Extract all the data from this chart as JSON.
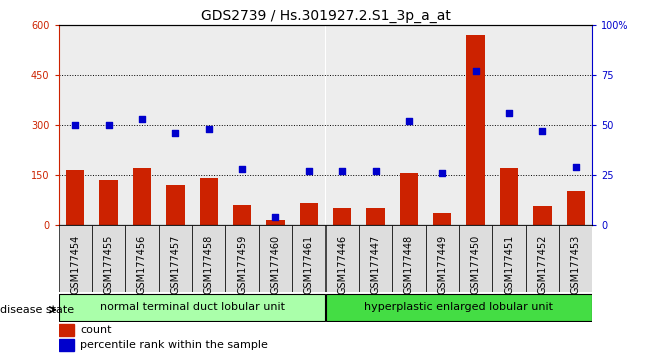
{
  "title": "GDS2739 / Hs.301927.2.S1_3p_a_at",
  "samples": [
    "GSM177454",
    "GSM177455",
    "GSM177456",
    "GSM177457",
    "GSM177458",
    "GSM177459",
    "GSM177460",
    "GSM177461",
    "GSM177446",
    "GSM177447",
    "GSM177448",
    "GSM177449",
    "GSM177450",
    "GSM177451",
    "GSM177452",
    "GSM177453"
  ],
  "counts": [
    165,
    135,
    170,
    120,
    140,
    60,
    15,
    65,
    50,
    50,
    155,
    35,
    570,
    170,
    55,
    100
  ],
  "percentiles": [
    50,
    50,
    53,
    46,
    48,
    28,
    4,
    27,
    27,
    27,
    52,
    26,
    77,
    56,
    47,
    29
  ],
  "group1_label": "normal terminal duct lobular unit",
  "group2_label": "hyperplastic enlarged lobular unit",
  "group1_count": 8,
  "group2_count": 8,
  "bar_color": "#cc2200",
  "dot_color": "#0000cc",
  "left_axis_color": "#cc2200",
  "right_axis_color": "#0000cc",
  "ylim_left": [
    0,
    600
  ],
  "ylim_right": [
    0,
    100
  ],
  "yticks_left": [
    0,
    150,
    300,
    450,
    600
  ],
  "yticks_right": [
    0,
    25,
    50,
    75,
    100
  ],
  "ytick_right_labels": [
    "0",
    "25",
    "50",
    "75",
    "100%"
  ],
  "grid_dotted_vals": [
    150,
    300,
    450
  ],
  "group1_color": "#aaffaa",
  "group2_color": "#44dd44",
  "col_bg_color": "#dddddd",
  "bg_color": "#ffffff",
  "title_fontsize": 10,
  "tick_fontsize": 7,
  "legend_fontsize": 8,
  "label_fontsize": 8
}
